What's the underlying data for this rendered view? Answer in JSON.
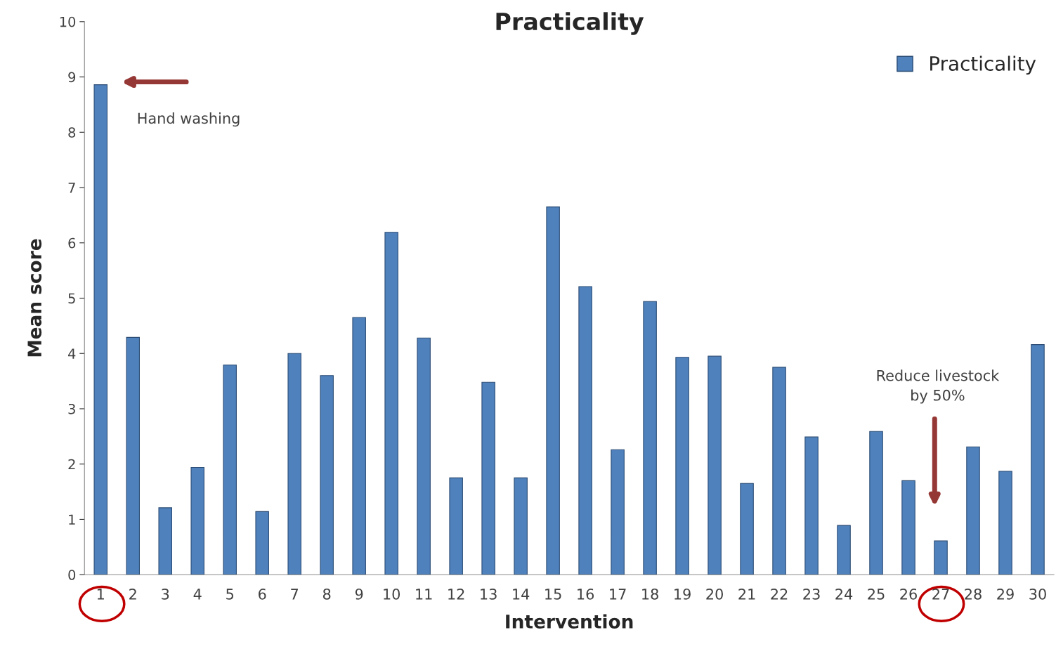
{
  "chart_data": {
    "type": "bar",
    "title": "Practicality",
    "xlabel": "Intervention",
    "ylabel": "Mean score",
    "categories": [
      "1",
      "2",
      "3",
      "4",
      "5",
      "6",
      "7",
      "8",
      "9",
      "10",
      "11",
      "12",
      "13",
      "14",
      "15",
      "16",
      "17",
      "18",
      "19",
      "20",
      "21",
      "22",
      "23",
      "24",
      "25",
      "26",
      "27",
      "28",
      "29",
      "30"
    ],
    "series": [
      {
        "name": "Practicality",
        "color": "#4f81bd",
        "values": [
          8.86,
          4.29,
          1.21,
          1.94,
          3.79,
          1.14,
          4.0,
          3.6,
          4.65,
          6.19,
          4.28,
          1.75,
          3.48,
          1.75,
          6.65,
          5.21,
          2.26,
          4.94,
          3.93,
          3.95,
          1.65,
          3.75,
          2.49,
          0.89,
          2.59,
          1.7,
          0.61,
          2.31,
          1.87,
          4.16
        ]
      }
    ],
    "ylim": [
      0,
      10
    ],
    "yticks": [
      0,
      1,
      2,
      3,
      4,
      5,
      6,
      7,
      8,
      9,
      10
    ],
    "grid": false,
    "legend": "top right",
    "annotations": [
      "Hand washing",
      "Reduce livestock\nby 50%"
    ]
  }
}
